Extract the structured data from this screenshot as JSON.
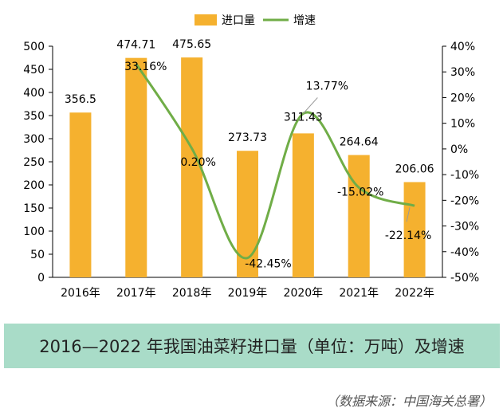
{
  "chart_data": {
    "type": "bar",
    "title": "2016—2022 年我国油菜籽进口量（单位：万吨）及增速",
    "source": "（数据来源：中国海关总署）",
    "categories": [
      "2016年",
      "2017年",
      "2018年",
      "2019年",
      "2020年",
      "2021年",
      "2022年"
    ],
    "series": [
      {
        "name": "进口量",
        "type": "bar",
        "axis": "left",
        "color": "#f5b12f",
        "values": [
          356.5,
          474.71,
          475.65,
          273.73,
          311.43,
          264.64,
          206.06
        ],
        "labels": [
          "356.5",
          "474.71",
          "475.65",
          "273.73",
          "311.43",
          "264.64",
          "206.06"
        ]
      },
      {
        "name": "增速",
        "type": "line",
        "axis": "right",
        "color": "#70ad47",
        "values": [
          null,
          33.16,
          0.2,
          -42.45,
          13.77,
          -15.02,
          -22.14
        ],
        "labels": [
          "",
          "33.16%",
          "0.20%",
          "-42.45%",
          "13.77%",
          "-15.02%",
          "-22.14%"
        ]
      }
    ],
    "y_left": {
      "min": 0,
      "max": 500,
      "step": 50,
      "ticks": [
        "0",
        "50",
        "100",
        "150",
        "200",
        "250",
        "300",
        "350",
        "400",
        "450",
        "500"
      ]
    },
    "y_right": {
      "min": -50,
      "max": 40,
      "step": 10,
      "ticks": [
        "-50%",
        "-40%",
        "-30%",
        "-20%",
        "-10%",
        "0%",
        "10%",
        "20%",
        "30%",
        "40%"
      ]
    },
    "legend_position": "top-center",
    "grid": false
  }
}
